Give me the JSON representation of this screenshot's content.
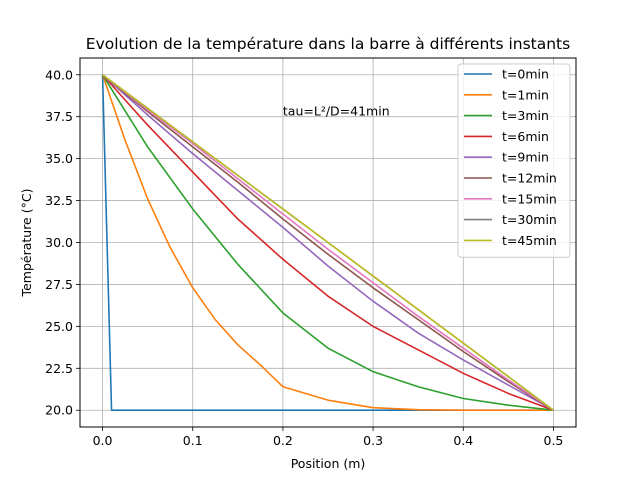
{
  "chart_data": {
    "type": "line",
    "title": "Evolution de la température dans la barre à différents instants",
    "xlabel": "Position (m)",
    "ylabel": "Température (°C)",
    "xlim": [
      -0.025,
      0.525
    ],
    "ylim": [
      19,
      41
    ],
    "xticks": [
      0.0,
      0.1,
      0.2,
      0.3,
      0.4,
      0.5
    ],
    "xtick_labels": [
      "0.0",
      "0.1",
      "0.2",
      "0.3",
      "0.4",
      "0.5"
    ],
    "yticks": [
      20.0,
      22.5,
      25.0,
      27.5,
      30.0,
      32.5,
      35.0,
      37.5,
      40.0
    ],
    "ytick_labels": [
      "20.0",
      "22.5",
      "25.0",
      "27.5",
      "30.0",
      "32.5",
      "35.0",
      "37.5",
      "40.0"
    ],
    "grid": true,
    "legend_position": "upper right",
    "annotation": {
      "text": "tau=L²/D=41min",
      "x": 0.2,
      "y": 37.8
    },
    "series": [
      {
        "name": "t=0min",
        "color": "#1f77b4",
        "x": [
          0.0,
          0.01,
          0.5
        ],
        "y": [
          40,
          20,
          20
        ]
      },
      {
        "name": "t=1min",
        "color": "#ff7f0e",
        "x": [
          0.0,
          0.025,
          0.05,
          0.075,
          0.1,
          0.125,
          0.15,
          0.175,
          0.2,
          0.25,
          0.3,
          0.35,
          0.4,
          0.45,
          0.5
        ],
        "y": [
          40,
          36.1,
          32.6,
          29.7,
          27.3,
          25.4,
          23.9,
          22.7,
          21.4,
          20.6,
          20.15,
          20.03,
          20.0,
          20.0,
          20.0
        ]
      },
      {
        "name": "t=3min",
        "color": "#2ca02c",
        "x": [
          0.0,
          0.05,
          0.1,
          0.15,
          0.2,
          0.25,
          0.3,
          0.35,
          0.4,
          0.45,
          0.5
        ],
        "y": [
          40,
          35.7,
          32.0,
          28.7,
          25.8,
          23.7,
          22.3,
          21.4,
          20.7,
          20.3,
          20.0
        ]
      },
      {
        "name": "t=6min",
        "color": "#d62728",
        "x": [
          0.0,
          0.05,
          0.1,
          0.15,
          0.2,
          0.25,
          0.3,
          0.35,
          0.4,
          0.45,
          0.5
        ],
        "y": [
          40,
          37.0,
          34.2,
          31.4,
          29.0,
          26.8,
          25.0,
          23.6,
          22.2,
          21.0,
          20.0
        ]
      },
      {
        "name": "t=9min",
        "color": "#9467bd",
        "x": [
          0.0,
          0.05,
          0.1,
          0.15,
          0.2,
          0.25,
          0.3,
          0.35,
          0.4,
          0.45,
          0.5
        ],
        "y": [
          40,
          37.6,
          35.3,
          33.1,
          30.9,
          28.6,
          26.5,
          24.6,
          23.0,
          21.5,
          20.0
        ]
      },
      {
        "name": "t=12min",
        "color": "#8c564b",
        "x": [
          0.0,
          0.05,
          0.1,
          0.15,
          0.2,
          0.25,
          0.3,
          0.35,
          0.4,
          0.45,
          0.5
        ],
        "y": [
          40,
          37.8,
          35.7,
          33.6,
          31.4,
          29.3,
          27.3,
          25.4,
          23.5,
          21.7,
          20.0
        ]
      },
      {
        "name": "t=15min",
        "color": "#e377c2",
        "x": [
          0.0,
          0.05,
          0.1,
          0.15,
          0.2,
          0.25,
          0.3,
          0.35,
          0.4,
          0.45,
          0.5
        ],
        "y": [
          40,
          37.9,
          35.9,
          33.8,
          31.7,
          29.6,
          27.6,
          25.6,
          23.7,
          21.8,
          20.0
        ]
      },
      {
        "name": "t=30min",
        "color": "#7f7f7f",
        "x": [
          0.0,
          0.05,
          0.1,
          0.15,
          0.2,
          0.25,
          0.3,
          0.35,
          0.4,
          0.45,
          0.5
        ],
        "y": [
          40,
          38.0,
          36.0,
          34.0,
          32.0,
          30.0,
          28.0,
          26.0,
          24.0,
          22.0,
          20.0
        ]
      },
      {
        "name": "t=45min",
        "color": "#bcbd22",
        "x": [
          0.0,
          0.5
        ],
        "y": [
          40,
          20
        ]
      }
    ]
  }
}
